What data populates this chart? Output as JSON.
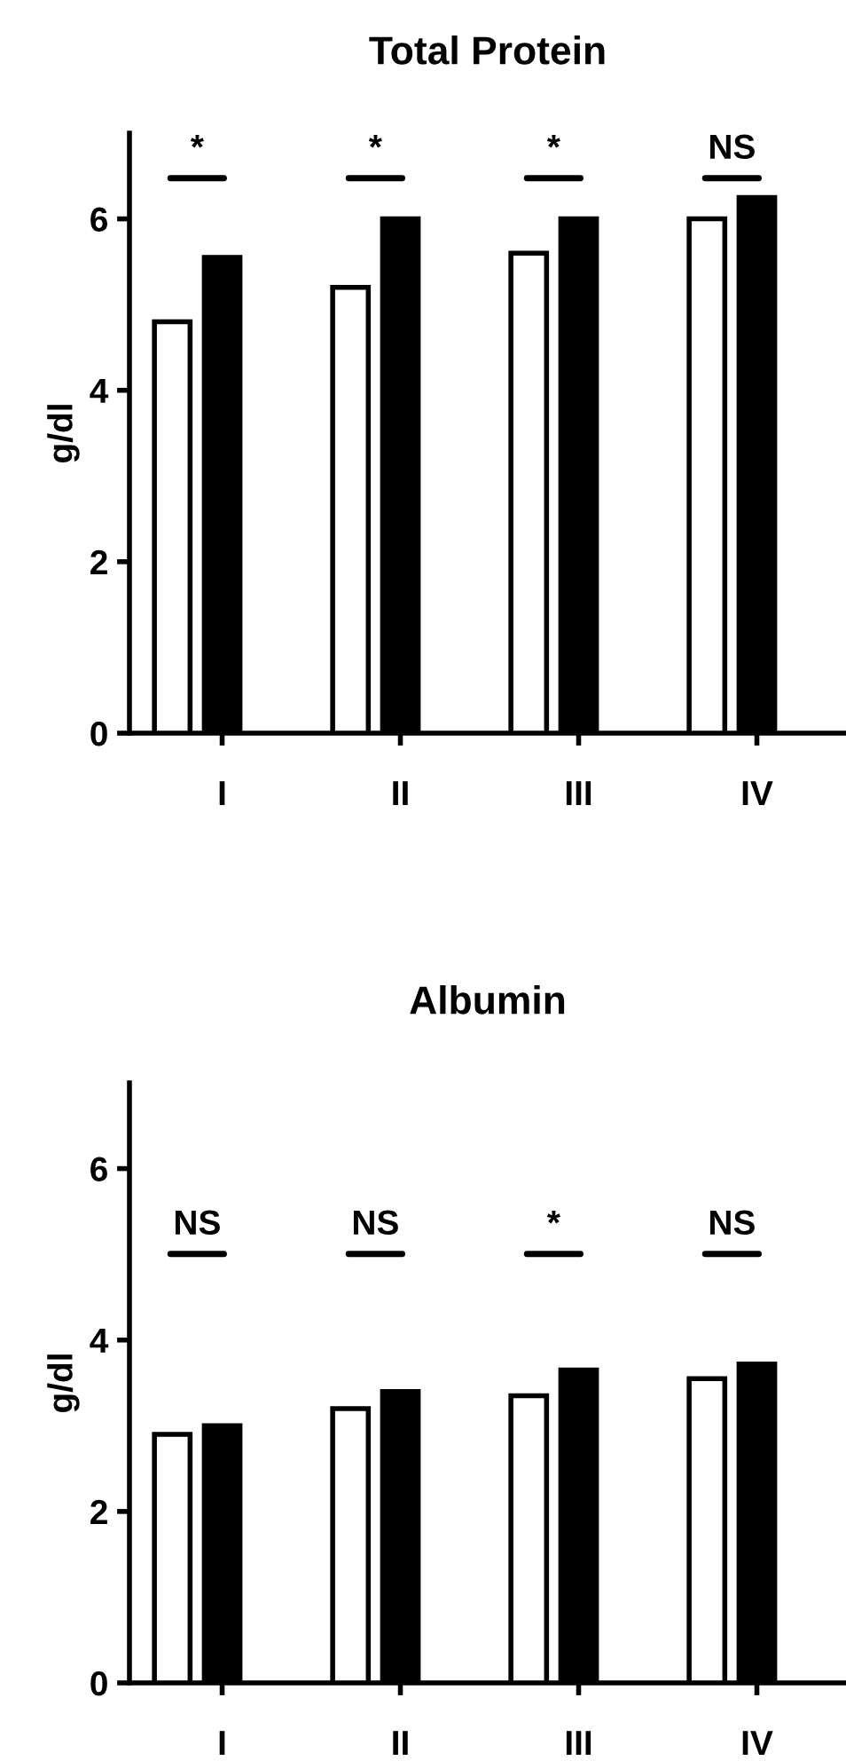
{
  "chart_data": [
    {
      "type": "bar",
      "title": "Total Protein",
      "ylabel": "g/dl",
      "categories": [
        "I",
        "II",
        "III",
        "IV"
      ],
      "series": [
        {
          "color": "#ffffff",
          "values": [
            4.8,
            5.2,
            5.6,
            6.0
          ]
        },
        {
          "color": "#000000",
          "values": [
            5.55,
            6.0,
            6.0,
            6.25
          ]
        }
      ],
      "ylim": [
        0,
        7
      ],
      "yticks": [
        0,
        2,
        4,
        6
      ],
      "grid": false,
      "annotations": [
        "*",
        "*",
        "*",
        "NS"
      ]
    },
    {
      "type": "bar",
      "title": "Albumin",
      "ylabel": "g/dl",
      "categories": [
        "I",
        "II",
        "III",
        "IV"
      ],
      "series": [
        {
          "color": "#ffffff",
          "values": [
            2.9,
            3.2,
            3.35,
            3.55
          ]
        },
        {
          "color": "#000000",
          "values": [
            3.0,
            3.4,
            3.65,
            3.72
          ]
        }
      ],
      "ylim": [
        0,
        7
      ],
      "yticks": [
        0,
        2,
        4,
        6
      ],
      "grid": false,
      "annotations": [
        "NS",
        "NS",
        "*",
        "NS"
      ]
    }
  ]
}
